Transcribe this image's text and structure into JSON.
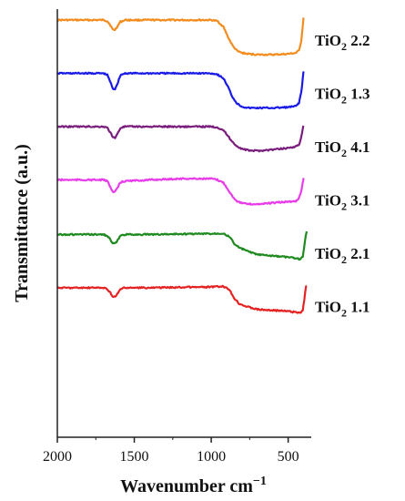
{
  "chart_data": {
    "type": "line",
    "title": "",
    "xlabel": "Wavenumber cm",
    "xlabel_superscript": "−1",
    "ylabel": "Transmittance (a.u.)",
    "xlim": [
      2000,
      350
    ],
    "x_reversed": true,
    "x_ticks": [
      2000,
      1500,
      1000,
      500
    ],
    "y_ticks_shown": false,
    "grid": false,
    "legend": "labels-right-of-curves",
    "series": [
      {
        "name": "TiO2 2.2",
        "name_main": "TiO",
        "name_sub": "2",
        "name_tail": " 2.2",
        "color": "#F28C1E",
        "offset": 5,
        "amplitude": 1.0,
        "x": [
          2000,
          1700,
          1675,
          1655,
          1640,
          1625,
          1605,
          1590,
          1560,
          1400,
          1200,
          1000,
          960,
          920,
          890,
          860,
          830,
          800,
          760,
          700,
          600,
          500,
          450,
          430,
          415,
          405,
          400
        ],
        "y": [
          1.0,
          1.0,
          0.97,
          0.85,
          0.72,
          0.72,
          0.85,
          0.95,
          1.0,
          1.0,
          1.0,
          1.0,
          0.97,
          0.8,
          0.5,
          0.25,
          0.1,
          0.05,
          0.02,
          0.0,
          0.0,
          0.02,
          0.05,
          0.12,
          0.4,
          0.85,
          1.05
        ]
      },
      {
        "name": "TiO2 1.3",
        "name_main": "TiO",
        "name_sub": "2",
        "name_tail": " 1.3",
        "color": "#1A1AE6",
        "offset": 4,
        "amplitude": 1.0,
        "x": [
          2000,
          1700,
          1675,
          1655,
          1640,
          1625,
          1605,
          1590,
          1560,
          1400,
          1200,
          1000,
          960,
          920,
          890,
          860,
          830,
          800,
          760,
          700,
          600,
          500,
          450,
          430,
          415,
          405,
          400
        ],
        "y": [
          1.0,
          1.0,
          0.95,
          0.75,
          0.55,
          0.55,
          0.75,
          0.95,
          1.0,
          1.0,
          1.0,
          1.0,
          0.97,
          0.85,
          0.6,
          0.3,
          0.12,
          0.04,
          0.0,
          0.0,
          0.0,
          0.02,
          0.05,
          0.15,
          0.45,
          0.85,
          1.05
        ]
      },
      {
        "name": "TiO2 4.1",
        "name_main": "TiO",
        "name_sub": "2",
        "name_tail": " 4.1",
        "color": "#7A1E7E",
        "offset": 3,
        "amplitude": 0.7,
        "x": [
          2000,
          1700,
          1675,
          1655,
          1640,
          1625,
          1605,
          1590,
          1560,
          1400,
          1200,
          1000,
          960,
          920,
          890,
          860,
          830,
          800,
          760,
          700,
          600,
          500,
          450,
          430,
          415,
          405,
          400
        ],
        "y": [
          1.0,
          1.0,
          0.95,
          0.75,
          0.55,
          0.55,
          0.75,
          0.95,
          1.0,
          1.0,
          1.0,
          1.0,
          0.97,
          0.85,
          0.6,
          0.35,
          0.18,
          0.08,
          0.02,
          0.0,
          0.05,
          0.12,
          0.18,
          0.25,
          0.55,
          0.9,
          1.05
        ]
      },
      {
        "name": "TiO2 3.1",
        "name_main": "TiO",
        "name_sub": "2",
        "name_tail": " 3.1",
        "color": "#E83CE8",
        "offset": 2,
        "amplitude": 0.7,
        "x": [
          2000,
          1700,
          1675,
          1655,
          1640,
          1625,
          1605,
          1590,
          1560,
          1400,
          1200,
          1000,
          960,
          920,
          890,
          860,
          830,
          800,
          760,
          700,
          600,
          500,
          450,
          430,
          415,
          405,
          400
        ],
        "y": [
          1.0,
          1.0,
          0.95,
          0.72,
          0.5,
          0.5,
          0.72,
          0.9,
          0.95,
          1.0,
          1.05,
          1.05,
          1.0,
          0.88,
          0.6,
          0.3,
          0.12,
          0.04,
          0.0,
          0.0,
          0.05,
          0.1,
          0.12,
          0.25,
          0.55,
          0.9,
          1.05
        ]
      },
      {
        "name": "TiO2 2.1",
        "name_main": "TiO",
        "name_sub": "2",
        "name_tail": " 2.1",
        "color": "#1F8A1F",
        "offset": 1,
        "amplitude": 0.75,
        "x": [
          2000,
          1700,
          1675,
          1655,
          1640,
          1625,
          1605,
          1590,
          1560,
          1400,
          1200,
          1000,
          920,
          880,
          850,
          820,
          780,
          740,
          700,
          600,
          500,
          440,
          420,
          405,
          395,
          385,
          380
        ],
        "y": [
          0.95,
          0.95,
          0.9,
          0.75,
          0.6,
          0.6,
          0.75,
          0.9,
          0.95,
          0.95,
          0.97,
          0.98,
          1.0,
          0.85,
          0.6,
          0.45,
          0.35,
          0.25,
          0.18,
          0.12,
          0.08,
          0.02,
          0.0,
          0.1,
          0.5,
          0.95,
          1.05
        ]
      },
      {
        "name": "TiO2 1.1",
        "name_main": "TiO",
        "name_sub": "2",
        "name_tail": " 1.1",
        "color": "#E52222",
        "offset": 0,
        "amplitude": 0.75,
        "x": [
          2000,
          1700,
          1675,
          1655,
          1640,
          1625,
          1605,
          1590,
          1560,
          1400,
          1200,
          1000,
          920,
          880,
          850,
          820,
          780,
          740,
          700,
          600,
          500,
          440,
          420,
          405,
          395,
          385,
          380
        ],
        "y": [
          0.95,
          0.95,
          0.9,
          0.75,
          0.6,
          0.6,
          0.75,
          0.9,
          0.95,
          0.95,
          0.97,
          0.98,
          1.0,
          0.85,
          0.55,
          0.35,
          0.25,
          0.18,
          0.12,
          0.08,
          0.05,
          0.0,
          0.0,
          0.1,
          0.5,
          0.95,
          1.05
        ]
      }
    ]
  }
}
